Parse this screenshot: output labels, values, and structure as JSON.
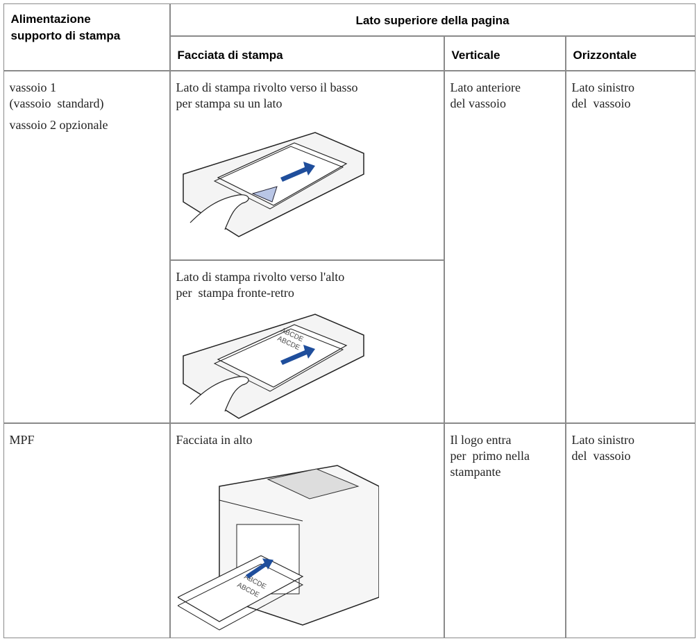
{
  "header": {
    "feed_lines": [
      "Alimentazione",
      "supporto di stampa"
    ],
    "top_edge": "Lato superiore della pagina",
    "print_side": "Facciata di stampa",
    "portrait": "Verticale",
    "landscape": "Orizzontale"
  },
  "rows": [
    {
      "feed": [
        "vassoio 1",
        "(vassoio  standard)",
        "vassoio 2 opzionale"
      ],
      "print_side": [
        [
          "Lato di stampa rivolto verso il basso",
          "per stampa su un lato"
        ],
        [
          "Lato di stampa rivolto verso l'alto",
          "per  stampa fronte-retro"
        ]
      ],
      "paper_text": [
        "ABCDE",
        "ABCDE"
      ],
      "portrait": [
        "Lato anteriore",
        "del vassoio"
      ],
      "landscape": [
        "Lato sinistro",
        "del  vassoio"
      ]
    },
    {
      "feed": [
        "MPF"
      ],
      "print_side": [
        [
          "Facciata in alto"
        ]
      ],
      "paper_text": [
        "ABCDE",
        "ABCDE"
      ],
      "portrait": [
        "Il logo entra",
        "per  primo nella",
        "stampante"
      ],
      "landscape": [
        "Lato sinistro",
        "del  vassoio"
      ]
    }
  ]
}
